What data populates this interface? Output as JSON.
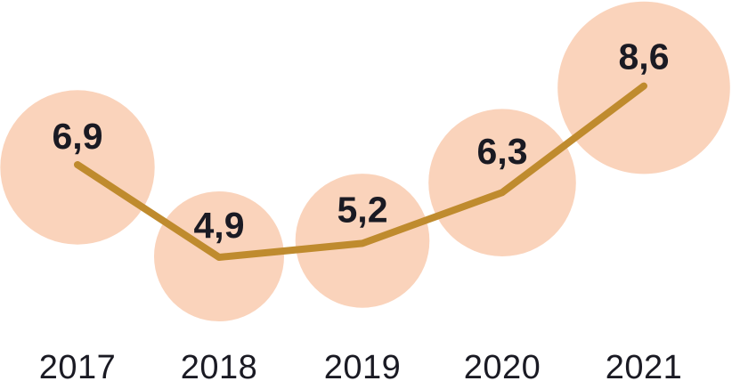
{
  "chart_data": {
    "type": "line",
    "variant": "line-with-area-proportional-bubble-markers",
    "categories": [
      "2017",
      "2018",
      "2019",
      "2020",
      "2021"
    ],
    "values": [
      6.9,
      4.9,
      5.2,
      6.3,
      8.6
    ],
    "value_labels": [
      "6,9",
      "4,9",
      "5,2",
      "6,3",
      "8,6"
    ],
    "decimal_separator": ",",
    "title": "",
    "xlabel": "",
    "ylabel": "",
    "grid": false,
    "legend": false,
    "axis_line": false,
    "colors": {
      "background": "#FFFFFF",
      "bubble_fill": "#FAD3BB",
      "line": "#BF8B2E",
      "value_text": "#1A1A23",
      "year_text": "#1A1A23"
    }
  }
}
